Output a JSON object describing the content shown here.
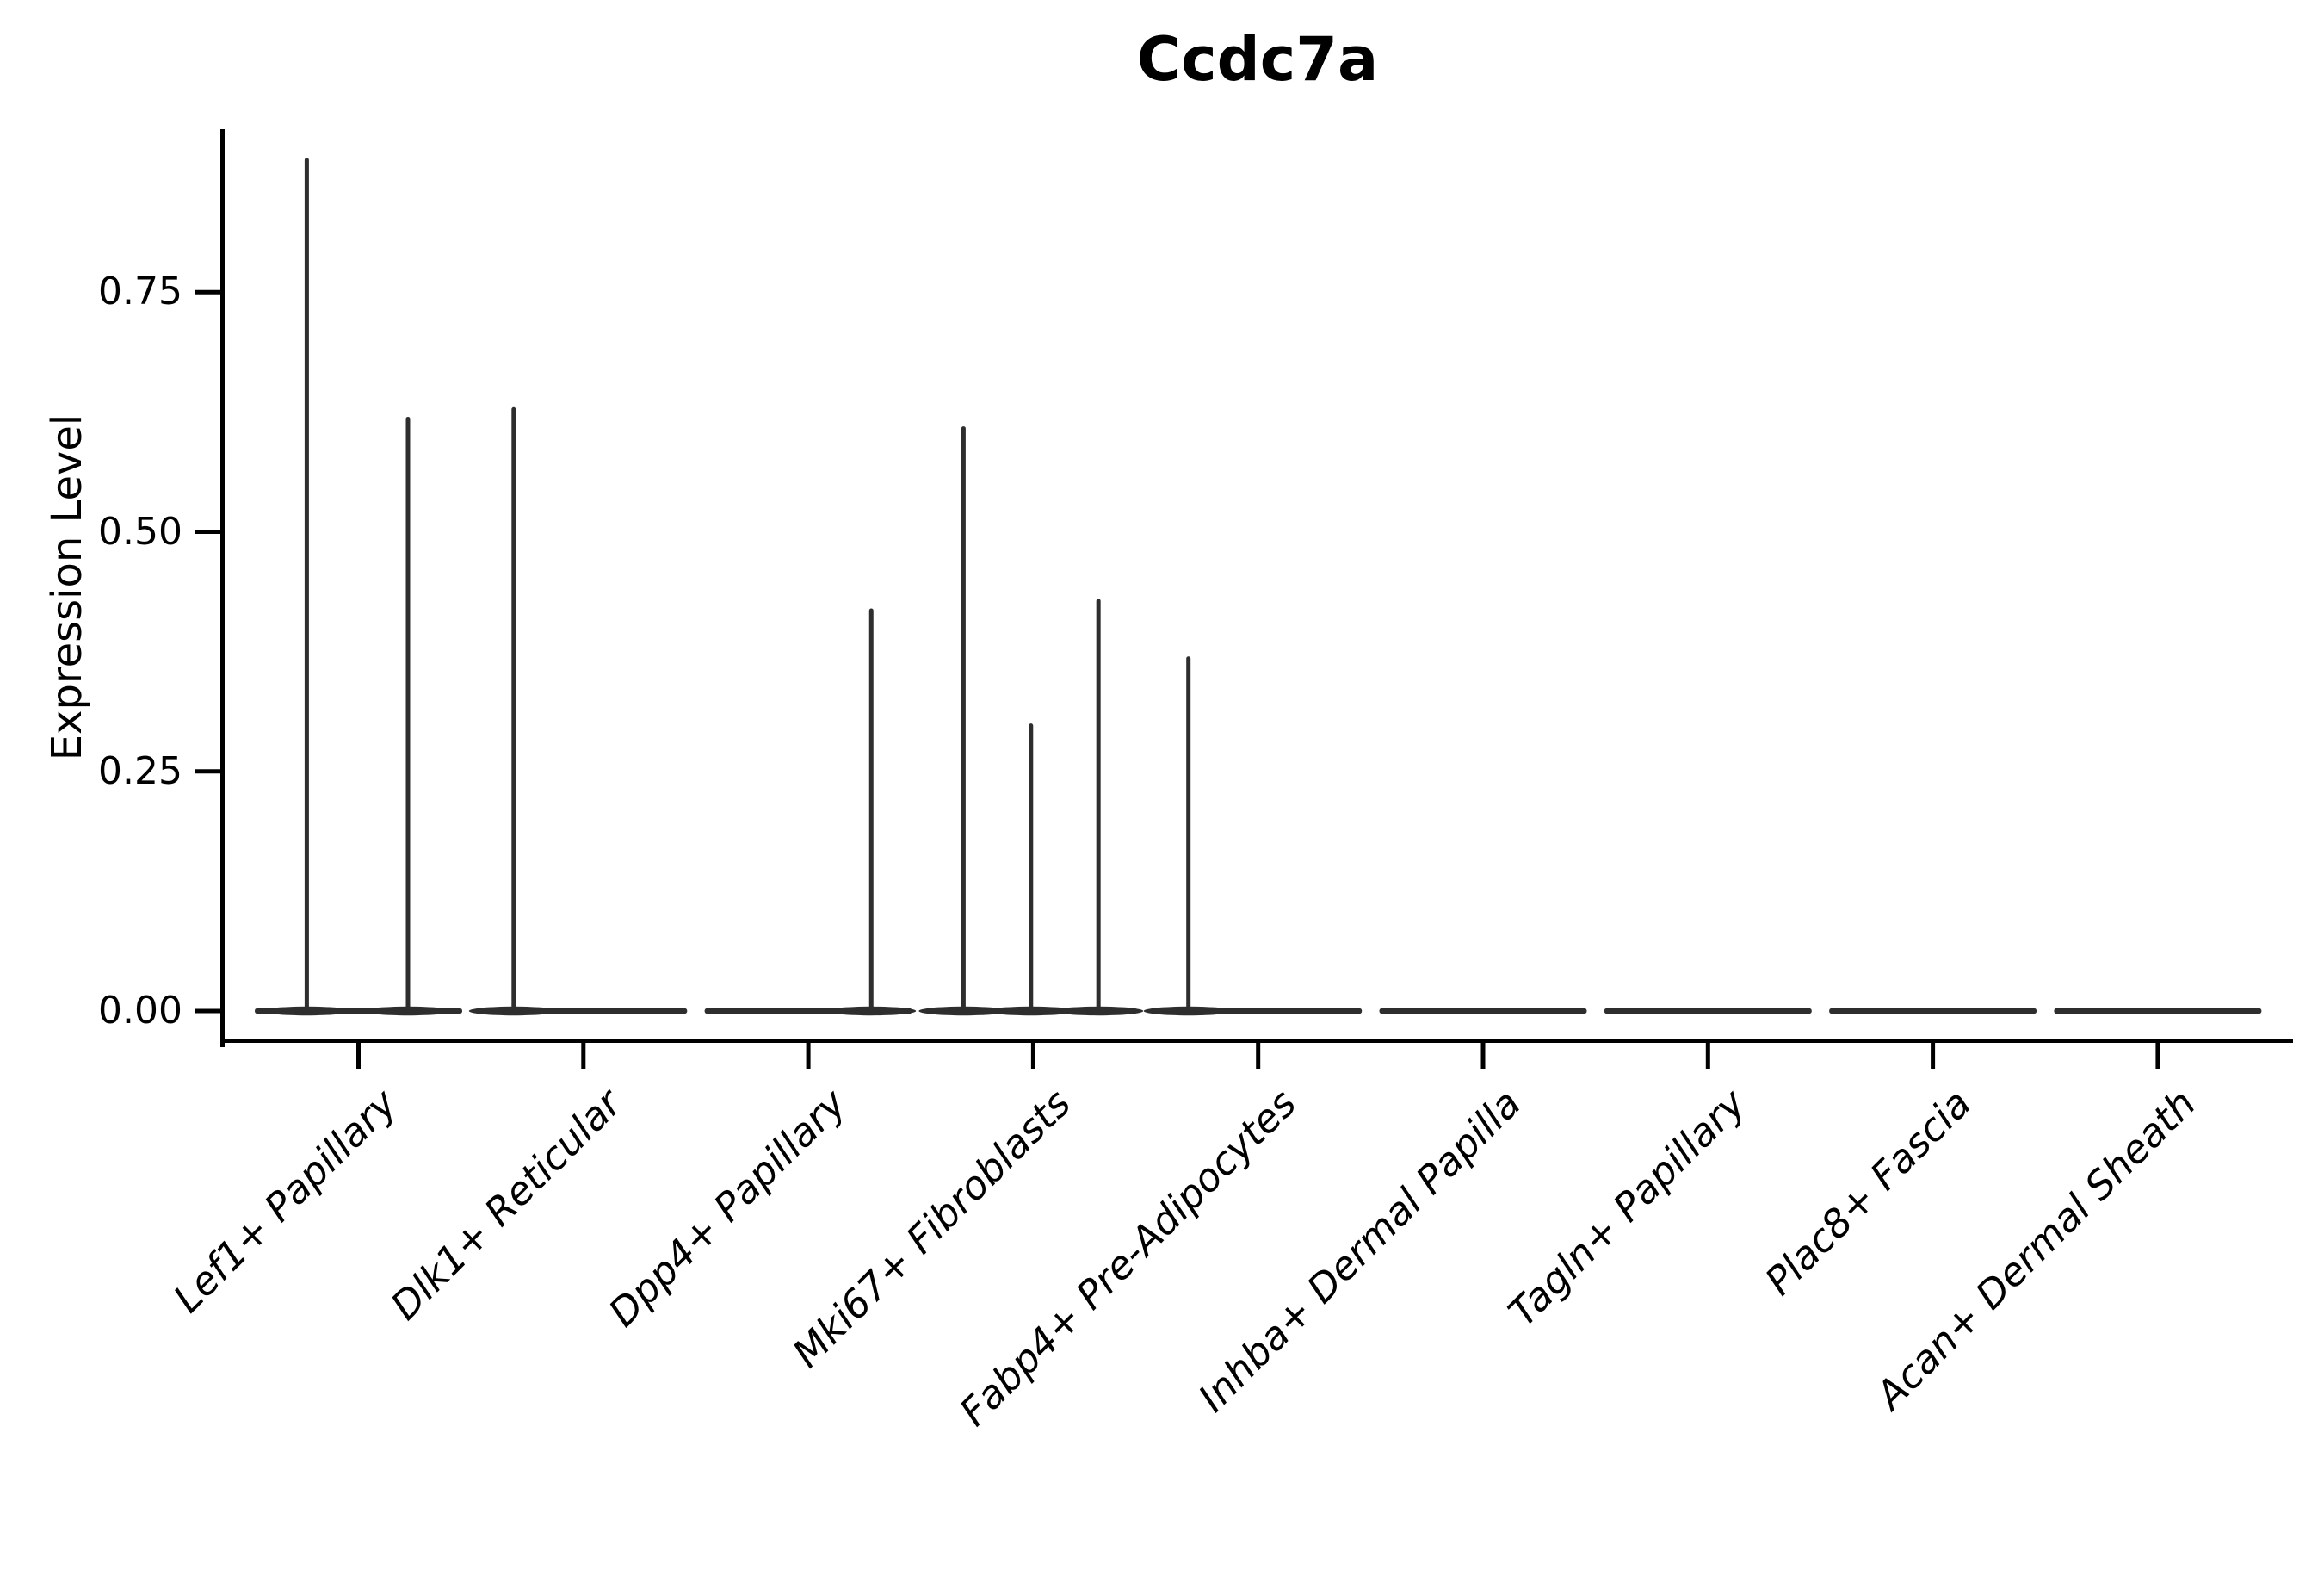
{
  "figure": {
    "title": "Ccdc7a",
    "ylabel": "Expression Level"
  },
  "colors": {
    "violin_stroke": "#2e2e2e",
    "axis": "#000000",
    "text": "#000000",
    "background": "#ffffff"
  },
  "chart_data": {
    "type": "violin",
    "title": "Ccdc7a",
    "xlabel": "",
    "ylabel": "Expression Level",
    "ylim": [
      0,
      0.92
    ],
    "ytick_labels": [
      "0.00",
      "0.25",
      "0.50",
      "0.75"
    ],
    "ytick_values": [
      0.0,
      0.25,
      0.5,
      0.75
    ],
    "grid": false,
    "legend": "none",
    "categories": [
      "Lef1+ Papillary",
      "Dlk1+ Reticular",
      "Dpp4+ Papillary",
      "Mki67+ Fibroblasts",
      "Fabp4+ Pre-Adipocytes",
      "Inhba+ Dermal Papilla",
      "Tagln+ Papillary",
      "Plac8+ Fascia",
      "Acan+ Dermal Sheath"
    ],
    "violins": [
      {
        "category": "Lef1+ Papillary",
        "baseline_value": 0,
        "spikes": [
          {
            "rel_x": -0.23,
            "value": 0.89
          },
          {
            "rel_x": 0.22,
            "value": 0.62
          }
        ]
      },
      {
        "category": "Dlk1+ Reticular",
        "baseline_value": 0,
        "spikes": [
          {
            "rel_x": -0.31,
            "value": 0.63
          }
        ]
      },
      {
        "category": "Dpp4+ Papillary",
        "baseline_value": 0,
        "spikes": [
          {
            "rel_x": 0.28,
            "value": 0.42
          }
        ]
      },
      {
        "category": "Mki67+ Fibroblasts",
        "baseline_value": 0,
        "spikes": [
          {
            "rel_x": -0.31,
            "value": 0.61
          },
          {
            "rel_x": -0.01,
            "value": 0.3
          },
          {
            "rel_x": 0.29,
            "value": 0.43
          }
        ]
      },
      {
        "category": "Fabp4+ Pre-Adipocytes",
        "baseline_value": 0,
        "spikes": [
          {
            "rel_x": -0.31,
            "value": 0.37
          }
        ]
      },
      {
        "category": "Inhba+ Dermal Papilla",
        "baseline_value": 0,
        "spikes": []
      },
      {
        "category": "Tagln+ Papillary",
        "baseline_value": 0,
        "spikes": []
      },
      {
        "category": "Plac8+ Fascia",
        "baseline_value": 0,
        "spikes": []
      },
      {
        "category": "Acan+ Dermal Sheath",
        "baseline_value": 0,
        "spikes": []
      }
    ]
  }
}
